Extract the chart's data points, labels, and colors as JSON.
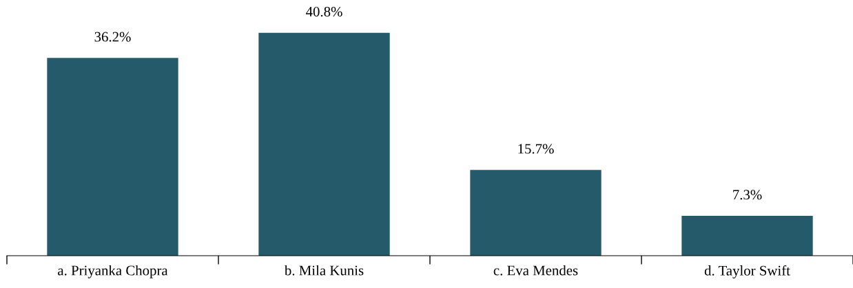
{
  "chart_data": {
    "type": "bar",
    "categories": [
      "a. Priyanka Chopra",
      "b. Mila Kunis",
      "c. Eva Mendes",
      "d. Taylor Swift"
    ],
    "values": [
      36.2,
      40.8,
      15.7,
      7.3
    ],
    "color": "#245a69",
    "value_labels": [
      "36.2%",
      "40.8%",
      "15.7%",
      "7.3%"
    ],
    "grid": false,
    "legend": false
  }
}
